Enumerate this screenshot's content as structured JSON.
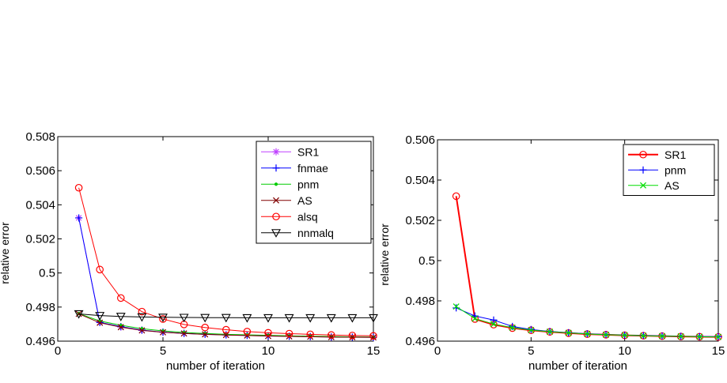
{
  "chart_data": [
    {
      "type": "line",
      "title": "",
      "xlabel": "number of iteration",
      "ylabel": "relative error",
      "xlim": [
        0,
        15
      ],
      "ylim": [
        0.496,
        0.508
      ],
      "xticks": [
        0,
        5,
        10,
        15
      ],
      "xtick_labels": [
        "0",
        "5",
        "10",
        "15"
      ],
      "yticks": [
        0.496,
        0.498,
        0.5,
        0.502,
        0.504,
        0.506,
        0.508
      ],
      "ytick_labels": [
        "0.496",
        "0.498",
        "0.5",
        "0.502",
        "0.504",
        "0.506",
        "0.508"
      ],
      "grid": false,
      "legend_position": "top-right",
      "x": [
        1,
        2,
        3,
        4,
        5,
        6,
        7,
        8,
        9,
        10,
        11,
        12,
        13,
        14,
        15
      ],
      "series": [
        {
          "name": "SR1",
          "color": "#bf40ff",
          "marker": "asterisk",
          "values": [
            0.50323,
            0.4971,
            0.49683,
            0.49663,
            0.49652,
            0.49645,
            0.4964,
            0.49636,
            0.49633,
            0.4963,
            0.49628,
            0.49626,
            0.49624,
            0.49623,
            0.49622
          ]
        },
        {
          "name": "fnmae",
          "color": "#0000ff",
          "marker": "plus",
          "values": [
            0.50323,
            0.4971,
            0.49685,
            0.49665,
            0.49653,
            0.49646,
            0.49641,
            0.49637,
            0.49634,
            0.49631,
            0.49629,
            0.49627,
            0.49625,
            0.49624,
            0.49623
          ]
        },
        {
          "name": "pnm",
          "color": "#00cc00",
          "marker": "dot",
          "values": [
            0.49762,
            0.49718,
            0.49693,
            0.49673,
            0.4966,
            0.49651,
            0.49645,
            0.4964,
            0.49637,
            0.49634,
            0.49631,
            0.49629,
            0.49627,
            0.49625,
            0.49624
          ]
        },
        {
          "name": "AS",
          "color": "#800000",
          "marker": "x",
          "values": [
            0.4976,
            0.49708,
            0.49682,
            0.49663,
            0.49652,
            0.49645,
            0.4964,
            0.49636,
            0.49633,
            0.4963,
            0.49628,
            0.49626,
            0.49624,
            0.49623,
            0.49622
          ]
        },
        {
          "name": "alsq",
          "color": "#ff0000",
          "marker": "circle",
          "values": [
            0.505,
            0.5002,
            0.49853,
            0.49773,
            0.4973,
            0.49698,
            0.4968,
            0.49667,
            0.49656,
            0.49649,
            0.49644,
            0.4964,
            0.49636,
            0.49633,
            0.49631
          ]
        },
        {
          "name": "nnmalq",
          "color": "#000000",
          "marker": "triangle-down",
          "values": [
            0.4976,
            0.4975,
            0.49745,
            0.49742,
            0.4974,
            0.49739,
            0.49738,
            0.49738,
            0.49737,
            0.49737,
            0.49737,
            0.49737,
            0.49737,
            0.49737,
            0.49737
          ]
        }
      ]
    },
    {
      "type": "line",
      "title": "",
      "xlabel": "number of iteration",
      "ylabel": "relative error",
      "xlim": [
        0,
        15
      ],
      "ylim": [
        0.496,
        0.506
      ],
      "xticks": [
        0,
        5,
        10,
        15
      ],
      "xtick_labels": [
        "0",
        "5",
        "10",
        "15"
      ],
      "yticks": [
        0.496,
        0.498,
        0.5,
        0.502,
        0.504,
        0.506
      ],
      "ytick_labels": [
        "0.496",
        "0.498",
        "0.5",
        "0.502",
        "0.504",
        "0.506"
      ],
      "grid": false,
      "legend_position": "top-right",
      "x": [
        1,
        2,
        3,
        4,
        5,
        6,
        7,
        8,
        9,
        10,
        11,
        12,
        13,
        14,
        15
      ],
      "series": [
        {
          "name": "SR1",
          "color": "#ff0000",
          "marker": "circle",
          "line_width": 2,
          "values": [
            0.5032,
            0.4971,
            0.49682,
            0.49665,
            0.49654,
            0.49646,
            0.4964,
            0.49635,
            0.49632,
            0.49629,
            0.49627,
            0.49625,
            0.49623,
            0.49622,
            0.49621
          ]
        },
        {
          "name": "pnm",
          "color": "#0000ff",
          "marker": "plus",
          "line_width": 1,
          "values": [
            0.49765,
            0.49725,
            0.49705,
            0.49673,
            0.49658,
            0.49648,
            0.49642,
            0.49637,
            0.49633,
            0.4963,
            0.49628,
            0.49626,
            0.49624,
            0.49623,
            0.49622
          ]
        },
        {
          "name": "AS",
          "color": "#00dd00",
          "marker": "x",
          "line_width": 1,
          "values": [
            0.49772,
            0.49712,
            0.49685,
            0.49667,
            0.49655,
            0.49647,
            0.49641,
            0.49636,
            0.49632,
            0.4963,
            0.49627,
            0.49625,
            0.49624,
            0.49622,
            0.49621
          ]
        }
      ]
    }
  ]
}
